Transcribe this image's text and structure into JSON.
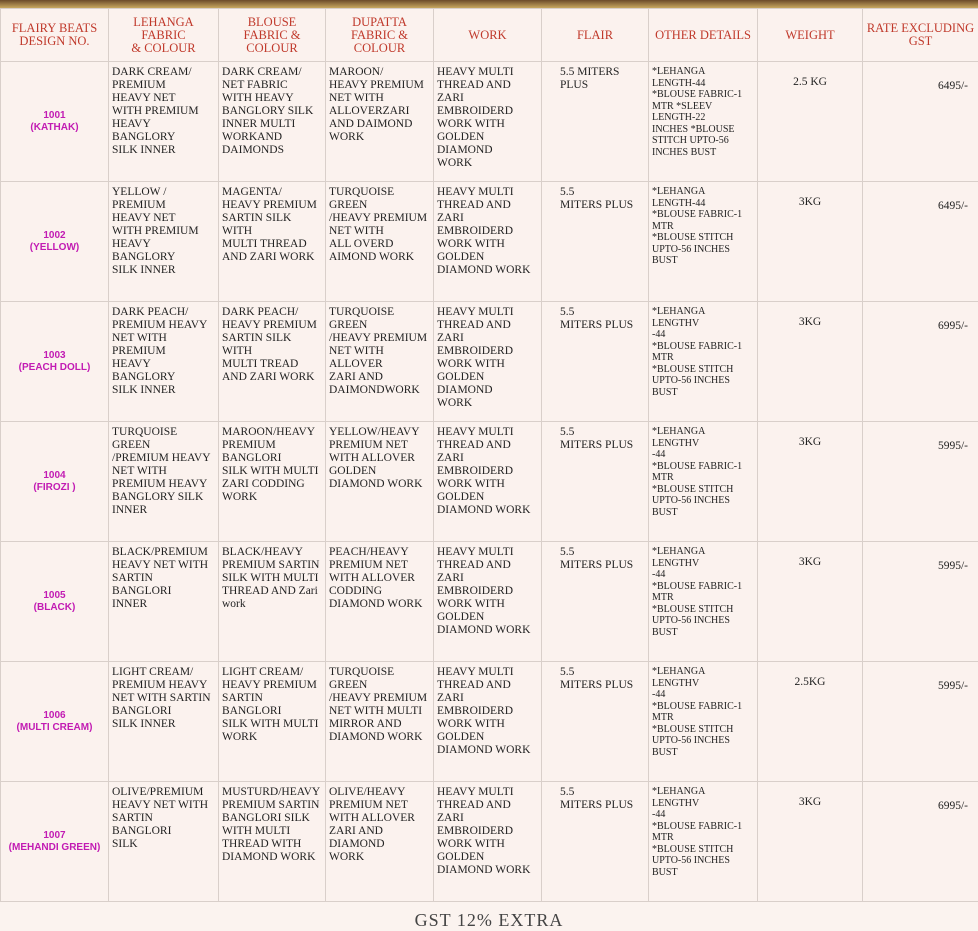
{
  "headers": [
    "FLAIRY BEATS\nDESIGN NO.",
    "LEHANGA FABRIC\n& COLOUR",
    "BLOUSE\nFABRIC &\nCOLOUR",
    "DUPATTA\nFABRIC &\nCOLOUR",
    "WORK",
    "FLAIR",
    "OTHER DETAILS",
    "WEIGHT",
    "RATE EXCLUDING\nGST"
  ],
  "rows": [
    {
      "design": "1001\n(KATHAK)",
      "lehanga": "DARK CREAM/\nPREMIUM\nHEAVY NET\nWITH PREMIUM\nHEAVY BANGLORY\nSILK INNER",
      "blouse": "DARK CREAM/\nNET FABRIC\nWITH HEAVY\nBANGLORY SILK\nINNER MULTI\nWORKAND\nDAIMONDS",
      "dupatta": "MAROON/\nHEAVY PREMIUM\nNET WITH\nALLOVERZARI\nAND DAIMOND\nWORK",
      "work": "HEAVY MULTI\nTHREAD AND\nZARI EMBROIDERD\nWORK WITH\nGOLDEN\nDIAMOND\nWORK",
      "flair": "5.5 MITERS\nPLUS",
      "other": "*LEHANGA\nLENGTH-44\n*BLOUSE FABRIC-1\nMTR *SLEEV\nLENGTH-22\nINCHES *BLOUSE\nSTITCH UPTO-56\nINCHES BUST",
      "weight": "2.5 KG",
      "rate": "6495/-"
    },
    {
      "design": "1002\n(YELLOW)",
      "lehanga": "YELLOW /\nPREMIUM\nHEAVY NET\nWITH PREMIUM\nHEAVY BANGLORY\nSILK INNER",
      "blouse": "MAGENTA/\nHEAVY PREMIUM\nSARTIN SILK WITH\nMULTI THREAD\nAND ZARI WORK",
      "dupatta": "TURQUOISE GREEN\n/HEAVY PREMIUM\nNET WITH\nALL OVERD\nAIMOND WORK",
      "work": "HEAVY MULTI\nTHREAD AND\nZARI EMBROIDERD\nWORK WITH\nGOLDEN\nDIAMOND WORK",
      "flair": "5.5\nMITERS PLUS",
      "other": "*LEHANGA\nLENGTH-44\n*BLOUSE FABRIC-1\nMTR\n*BLOUSE STITCH\nUPTO-56 INCHES\nBUST",
      "weight": "3KG",
      "rate": "6495/-"
    },
    {
      "design": "1003\n(PEACH DOLL)",
      "lehanga": "DARK PEACH/\nPREMIUM HEAVY\nNET WITH\nPREMIUM\nHEAVY BANGLORY\nSILK INNER",
      "blouse": "DARK PEACH/\nHEAVY PREMIUM\nSARTIN SILK WITH\nMULTI TREAD\nAND ZARI WORK",
      "dupatta": "TURQUOISE GREEN\n/HEAVY PREMIUM\nNET WITH ALLOVER\nZARI AND\nDAIMONDWORK",
      "work": "HEAVY MULTI\nTHREAD AND\nZARI EMBROIDERD\nWORK WITH\nGOLDEN DIAMOND\nWORK",
      "flair": "5.5\nMITERS PLUS",
      "other": "*LEHANGA LENGTHV\n-44\n*BLOUSE FABRIC-1\nMTR\n*BLOUSE STITCH\nUPTO-56 INCHES BUST",
      "weight": "3KG",
      "rate": "6995/-"
    },
    {
      "design": "1004\n(FIROZI )",
      "lehanga": "TURQUOISE GREEN\n/PREMIUM HEAVY\nNET WITH\nPREMIUM HEAVY\nBANGLORY SILK\nINNER",
      "blouse": "MAROON/HEAVY\nPREMIUM BANGLORI\nSILK WITH MULTI\nZARI CODDING\nWORK",
      "dupatta": "YELLOW/HEAVY\nPREMIUM NET\nWITH ALLOVER\nGOLDEN\nDIAMOND WORK",
      "work": "HEAVY MULTI\nTHREAD AND\nZARI EMBROIDERD\nWORK WITH\nGOLDEN\nDIAMOND WORK",
      "flair": "5.5\nMITERS PLUS",
      "other": "*LEHANGA LENGTHV\n-44\n*BLOUSE FABRIC-1\nMTR\n*BLOUSE STITCH\nUPTO-56 INCHES BUST",
      "weight": "3KG",
      "rate": "5995/-"
    },
    {
      "design": "1005\n(BLACK)",
      "lehanga": "BLACK/PREMIUM\nHEAVY NET WITH\nSARTIN BANGLORI\nINNER",
      "blouse": "BLACK/HEAVY\nPREMIUM SARTIN\nSILK WITH MULTI\nTHREAD AND Zari\nwork",
      "dupatta": "PEACH/HEAVY\nPREMIUM NET\nWITH ALLOVER\nCODDING\nDIAMOND WORK",
      "work": "HEAVY MULTI\nTHREAD AND\nZARI EMBROIDERD\nWORK WITH\nGOLDEN\nDIAMOND WORK",
      "flair": "5.5\nMITERS PLUS",
      "other": "*LEHANGA LENGTHV\n-44\n*BLOUSE FABRIC-1\nMTR\n*BLOUSE STITCH\nUPTO-56 INCHES BUST",
      "weight": "3KG",
      "rate": "5995/-"
    },
    {
      "design": "1006\n(MULTI CREAM)",
      "lehanga": "LIGHT CREAM/\nPREMIUM HEAVY\nNET WITH SARTIN\nBANGLORI\nSILK INNER",
      "blouse": "LIGHT CREAM/\nHEAVY PREMIUM\nSARTIN BANGLORI\nSILK WITH MULTI\nWORK",
      "dupatta": "TURQUOISE GREEN\n/HEAVY PREMIUM\nNET WITH MULTI\nMIRROR AND\nDIAMOND WORK",
      "work": "HEAVY MULTI\nTHREAD AND\nZARI EMBROIDERD\nWORK WITH\nGOLDEN\nDIAMOND WORK",
      "flair": "5.5\nMITERS PLUS",
      "other": "*LEHANGA LENGTHV\n-44\n*BLOUSE FABRIC-1\nMTR\n*BLOUSE STITCH\nUPTO-56 INCHES BUST",
      "weight": "2.5KG",
      "rate": "5995/-"
    },
    {
      "design": "1007\n(MEHANDI GREEN)",
      "lehanga": "OLIVE/PREMIUM\nHEAVY NET WITH\nSARTIN BANGLORI\nSILK",
      "blouse": "MUSTURD/HEAVY\nPREMIUM SARTIN\nBANGLORI SILK\nWITH MULTI\nTHREAD WITH\nDIAMOND WORK",
      "dupatta": "OLIVE/HEAVY\nPREMIUM NET\nWITH ALLOVER\nZARI AND\nDIAMOND\nWORK",
      "work": "HEAVY MULTI\nTHREAD AND\nZARI EMBROIDERD\nWORK WITH\nGOLDEN\nDIAMOND WORK",
      "flair": "5.5\nMITERS PLUS",
      "other": "*LEHANGA LENGTHV\n-44\n*BLOUSE FABRIC-1\nMTR\n*BLOUSE STITCH\nUPTO-56 INCHES BUST",
      "weight": "3KG",
      "rate": "6995/-"
    }
  ],
  "footer": "GST 12% EXTRA",
  "colors": {
    "header_text": "#c0392b",
    "design_text": "#c21bb3",
    "background": "#fbf2ee"
  }
}
